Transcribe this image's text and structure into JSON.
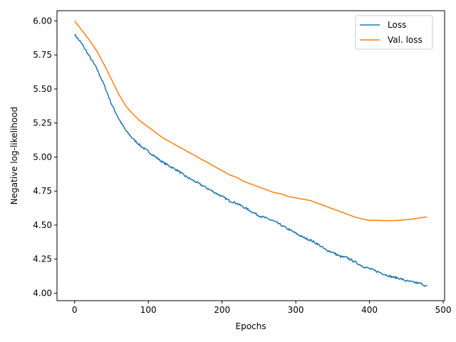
{
  "chart_data": {
    "type": "line",
    "xlabel": "Epochs",
    "ylabel": "Negative log-likelihood",
    "xlim": [
      -23.9,
      501.9
    ],
    "ylim": [
      3.945,
      6.075
    ],
    "xticks": [
      0,
      100,
      200,
      300,
      400,
      500
    ],
    "xtick_labels": [
      "0",
      "100",
      "200",
      "300",
      "400",
      "500"
    ],
    "yticks": [
      4.0,
      4.25,
      4.5,
      4.75,
      5.0,
      5.25,
      5.5,
      5.75,
      6.0
    ],
    "ytick_labels": [
      "4.00",
      "4.25",
      "4.50",
      "4.75",
      "5.00",
      "5.25",
      "5.50",
      "5.75",
      "6.00"
    ],
    "grid": false,
    "legend_position": "top-right",
    "series": [
      {
        "name": "Loss",
        "color": "#1f77b4",
        "noise": 0.008,
        "x": [
          0,
          10,
          20,
          30,
          40,
          50,
          60,
          70,
          80,
          90,
          100,
          110,
          120,
          130,
          140,
          150,
          160,
          170,
          180,
          190,
          200,
          210,
          220,
          230,
          240,
          250,
          260,
          270,
          280,
          290,
          300,
          310,
          320,
          330,
          340,
          350,
          360,
          370,
          380,
          390,
          400,
          410,
          420,
          430,
          440,
          450,
          460,
          470,
          478
        ],
        "y": [
          5.9,
          5.83,
          5.74,
          5.65,
          5.53,
          5.39,
          5.28,
          5.19,
          5.13,
          5.08,
          5.04,
          5.0,
          4.96,
          4.93,
          4.9,
          4.86,
          4.83,
          4.8,
          4.77,
          4.74,
          4.71,
          4.68,
          4.66,
          4.63,
          4.6,
          4.57,
          4.55,
          4.53,
          4.5,
          4.47,
          4.44,
          4.41,
          4.39,
          4.36,
          4.32,
          4.3,
          4.27,
          4.26,
          4.23,
          4.2,
          4.18,
          4.16,
          4.14,
          4.12,
          4.11,
          4.09,
          4.08,
          4.07,
          4.05
        ]
      },
      {
        "name": "Val. loss",
        "color": "#ff7f0e",
        "noise": 0,
        "x": [
          0,
          10,
          20,
          30,
          40,
          50,
          60,
          70,
          80,
          90,
          100,
          110,
          120,
          130,
          140,
          150,
          160,
          170,
          180,
          190,
          200,
          210,
          220,
          230,
          240,
          250,
          260,
          270,
          280,
          290,
          300,
          310,
          320,
          330,
          340,
          350,
          360,
          370,
          380,
          390,
          400,
          410,
          420,
          430,
          440,
          450,
          460,
          470,
          478
        ],
        "y": [
          6.0,
          5.93,
          5.86,
          5.78,
          5.68,
          5.57,
          5.46,
          5.37,
          5.31,
          5.26,
          5.22,
          5.18,
          5.14,
          5.11,
          5.08,
          5.05,
          5.02,
          4.99,
          4.96,
          4.93,
          4.9,
          4.87,
          4.85,
          4.82,
          4.8,
          4.78,
          4.76,
          4.74,
          4.73,
          4.71,
          4.7,
          4.69,
          4.68,
          4.66,
          4.64,
          4.62,
          4.6,
          4.58,
          4.56,
          4.545,
          4.535,
          4.535,
          4.533,
          4.533,
          4.535,
          4.54,
          4.545,
          4.555,
          4.56
        ]
      }
    ]
  }
}
